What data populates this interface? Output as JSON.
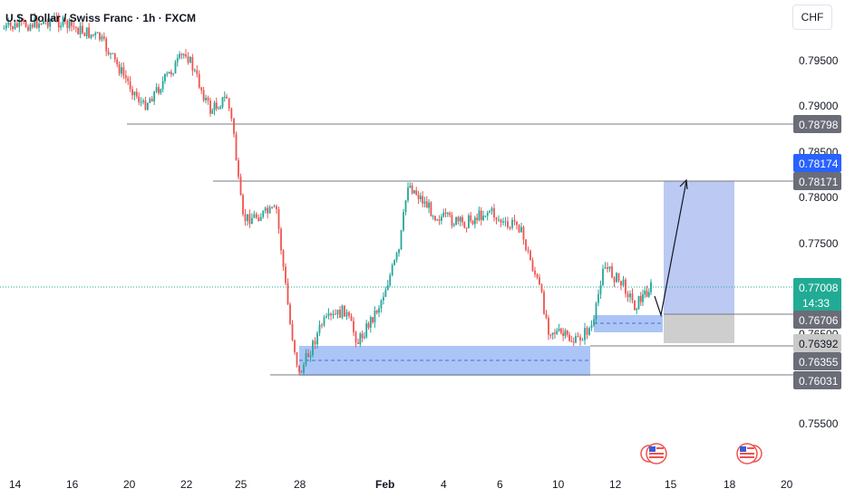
{
  "header": {
    "title": "U.S. Dollar / Swiss Franc · 1h · FXCM"
  },
  "currency": "CHF",
  "colors": {
    "up": "#26a69a",
    "down": "#ef5350",
    "zone": "#8fb1f4",
    "target": "#b7c6f2",
    "stop": "#c9c9c9",
    "level_line": "#787b86",
    "current_tag": "#22ab94",
    "blue_tag": "#2962ff",
    "grey_tag": "#6a6d78"
  },
  "price_axis": {
    "ticks": [
      "0.79500",
      "0.79000",
      "0.78500",
      "0.78000",
      "0.77500",
      "0.76500",
      "0.75500"
    ],
    "tick_values": [
      0.795,
      0.79,
      0.785,
      0.78,
      0.775,
      0.765,
      0.755
    ]
  },
  "time_axis": {
    "labels": [
      "14",
      "16",
      "20",
      "22",
      "25",
      "28",
      "Feb",
      "4",
      "6",
      "10",
      "12",
      "15",
      "18",
      "20"
    ]
  },
  "price_tags": {
    "current": {
      "price": "0.77008",
      "countdown": "14:33"
    },
    "level_top": "0.78798",
    "target_high": "0.78174",
    "target_level": "0.78171",
    "entry": "0.76706",
    "zone_mid": "0.76392",
    "zone_low": "0.76355",
    "zone_bottom": "0.76031"
  },
  "chart_data": {
    "type": "candlestick",
    "title": "U.S. Dollar / Swiss Franc · 1h · FXCM",
    "y_unit": "CHF",
    "ylim": [
      0.7512,
      0.8006
    ],
    "x_tick_labels": [
      "14",
      "16",
      "20",
      "22",
      "25",
      "28",
      "Feb",
      "4",
      "6",
      "10",
      "12",
      "15",
      "18",
      "20"
    ],
    "close_path": [
      {
        "x": "Jan 13",
        "y": 0.7985
      },
      {
        "x": "Jan 15",
        "y": 0.7995
      },
      {
        "x": "Jan 17",
        "y": 0.7975
      },
      {
        "x": "Jan 20",
        "y": 0.79
      },
      {
        "x": "Jan 21",
        "y": 0.792
      },
      {
        "x": "Jan 22",
        "y": 0.796
      },
      {
        "x": "Jan 23",
        "y": 0.7895
      },
      {
        "x": "Jan 24",
        "y": 0.791
      },
      {
        "x": "Jan 24",
        "y": 0.787
      },
      {
        "x": "Jan 25",
        "y": 0.7815
      },
      {
        "x": "Jan 25",
        "y": 0.7775
      },
      {
        "x": "Jan 27",
        "y": 0.7785
      },
      {
        "x": "Jan 28",
        "y": 0.766
      },
      {
        "x": "Jan 28",
        "y": 0.7604
      },
      {
        "x": "Jan 29",
        "y": 0.766
      },
      {
        "x": "Jan 30",
        "y": 0.7675
      },
      {
        "x": "Jan 31",
        "y": 0.764
      },
      {
        "x": "Feb 1",
        "y": 0.768
      },
      {
        "x": "Feb 2",
        "y": 0.774
      },
      {
        "x": "Feb 3",
        "y": 0.7815
      },
      {
        "x": "Feb 4",
        "y": 0.778
      },
      {
        "x": "Feb 5",
        "y": 0.777
      },
      {
        "x": "Feb 6",
        "y": 0.7785
      },
      {
        "x": "Feb 7",
        "y": 0.7765
      },
      {
        "x": "Feb 8",
        "y": 0.7775
      },
      {
        "x": "Feb 9",
        "y": 0.77
      },
      {
        "x": "Feb 10",
        "y": 0.7655
      },
      {
        "x": "Feb 10",
        "y": 0.764
      },
      {
        "x": "Feb 11",
        "y": 0.766
      },
      {
        "x": "Feb 11",
        "y": 0.7725
      },
      {
        "x": "Feb 12",
        "y": 0.77
      },
      {
        "x": "Feb 13",
        "y": 0.768
      },
      {
        "x": "Feb 13",
        "y": 0.7701
      }
    ],
    "horizontal_levels": [
      0.78798,
      0.78171,
      0.76392,
      0.76031
    ],
    "zones": [
      {
        "name": "demand-zone-large",
        "x_start": "Jan 28",
        "x_end": "Feb 11",
        "y_low": 0.76031,
        "y_high": 0.76355
      },
      {
        "name": "demand-zone-small",
        "x_start": "Feb 11",
        "x_end": "Feb 14",
        "y_low": 0.7652,
        "y_high": 0.76706
      }
    ],
    "position": {
      "type": "long",
      "entry": 0.76706,
      "target": 0.78171,
      "stop": 0.76392
    },
    "current_price": 0.77008,
    "legend": "none",
    "grid": false
  }
}
